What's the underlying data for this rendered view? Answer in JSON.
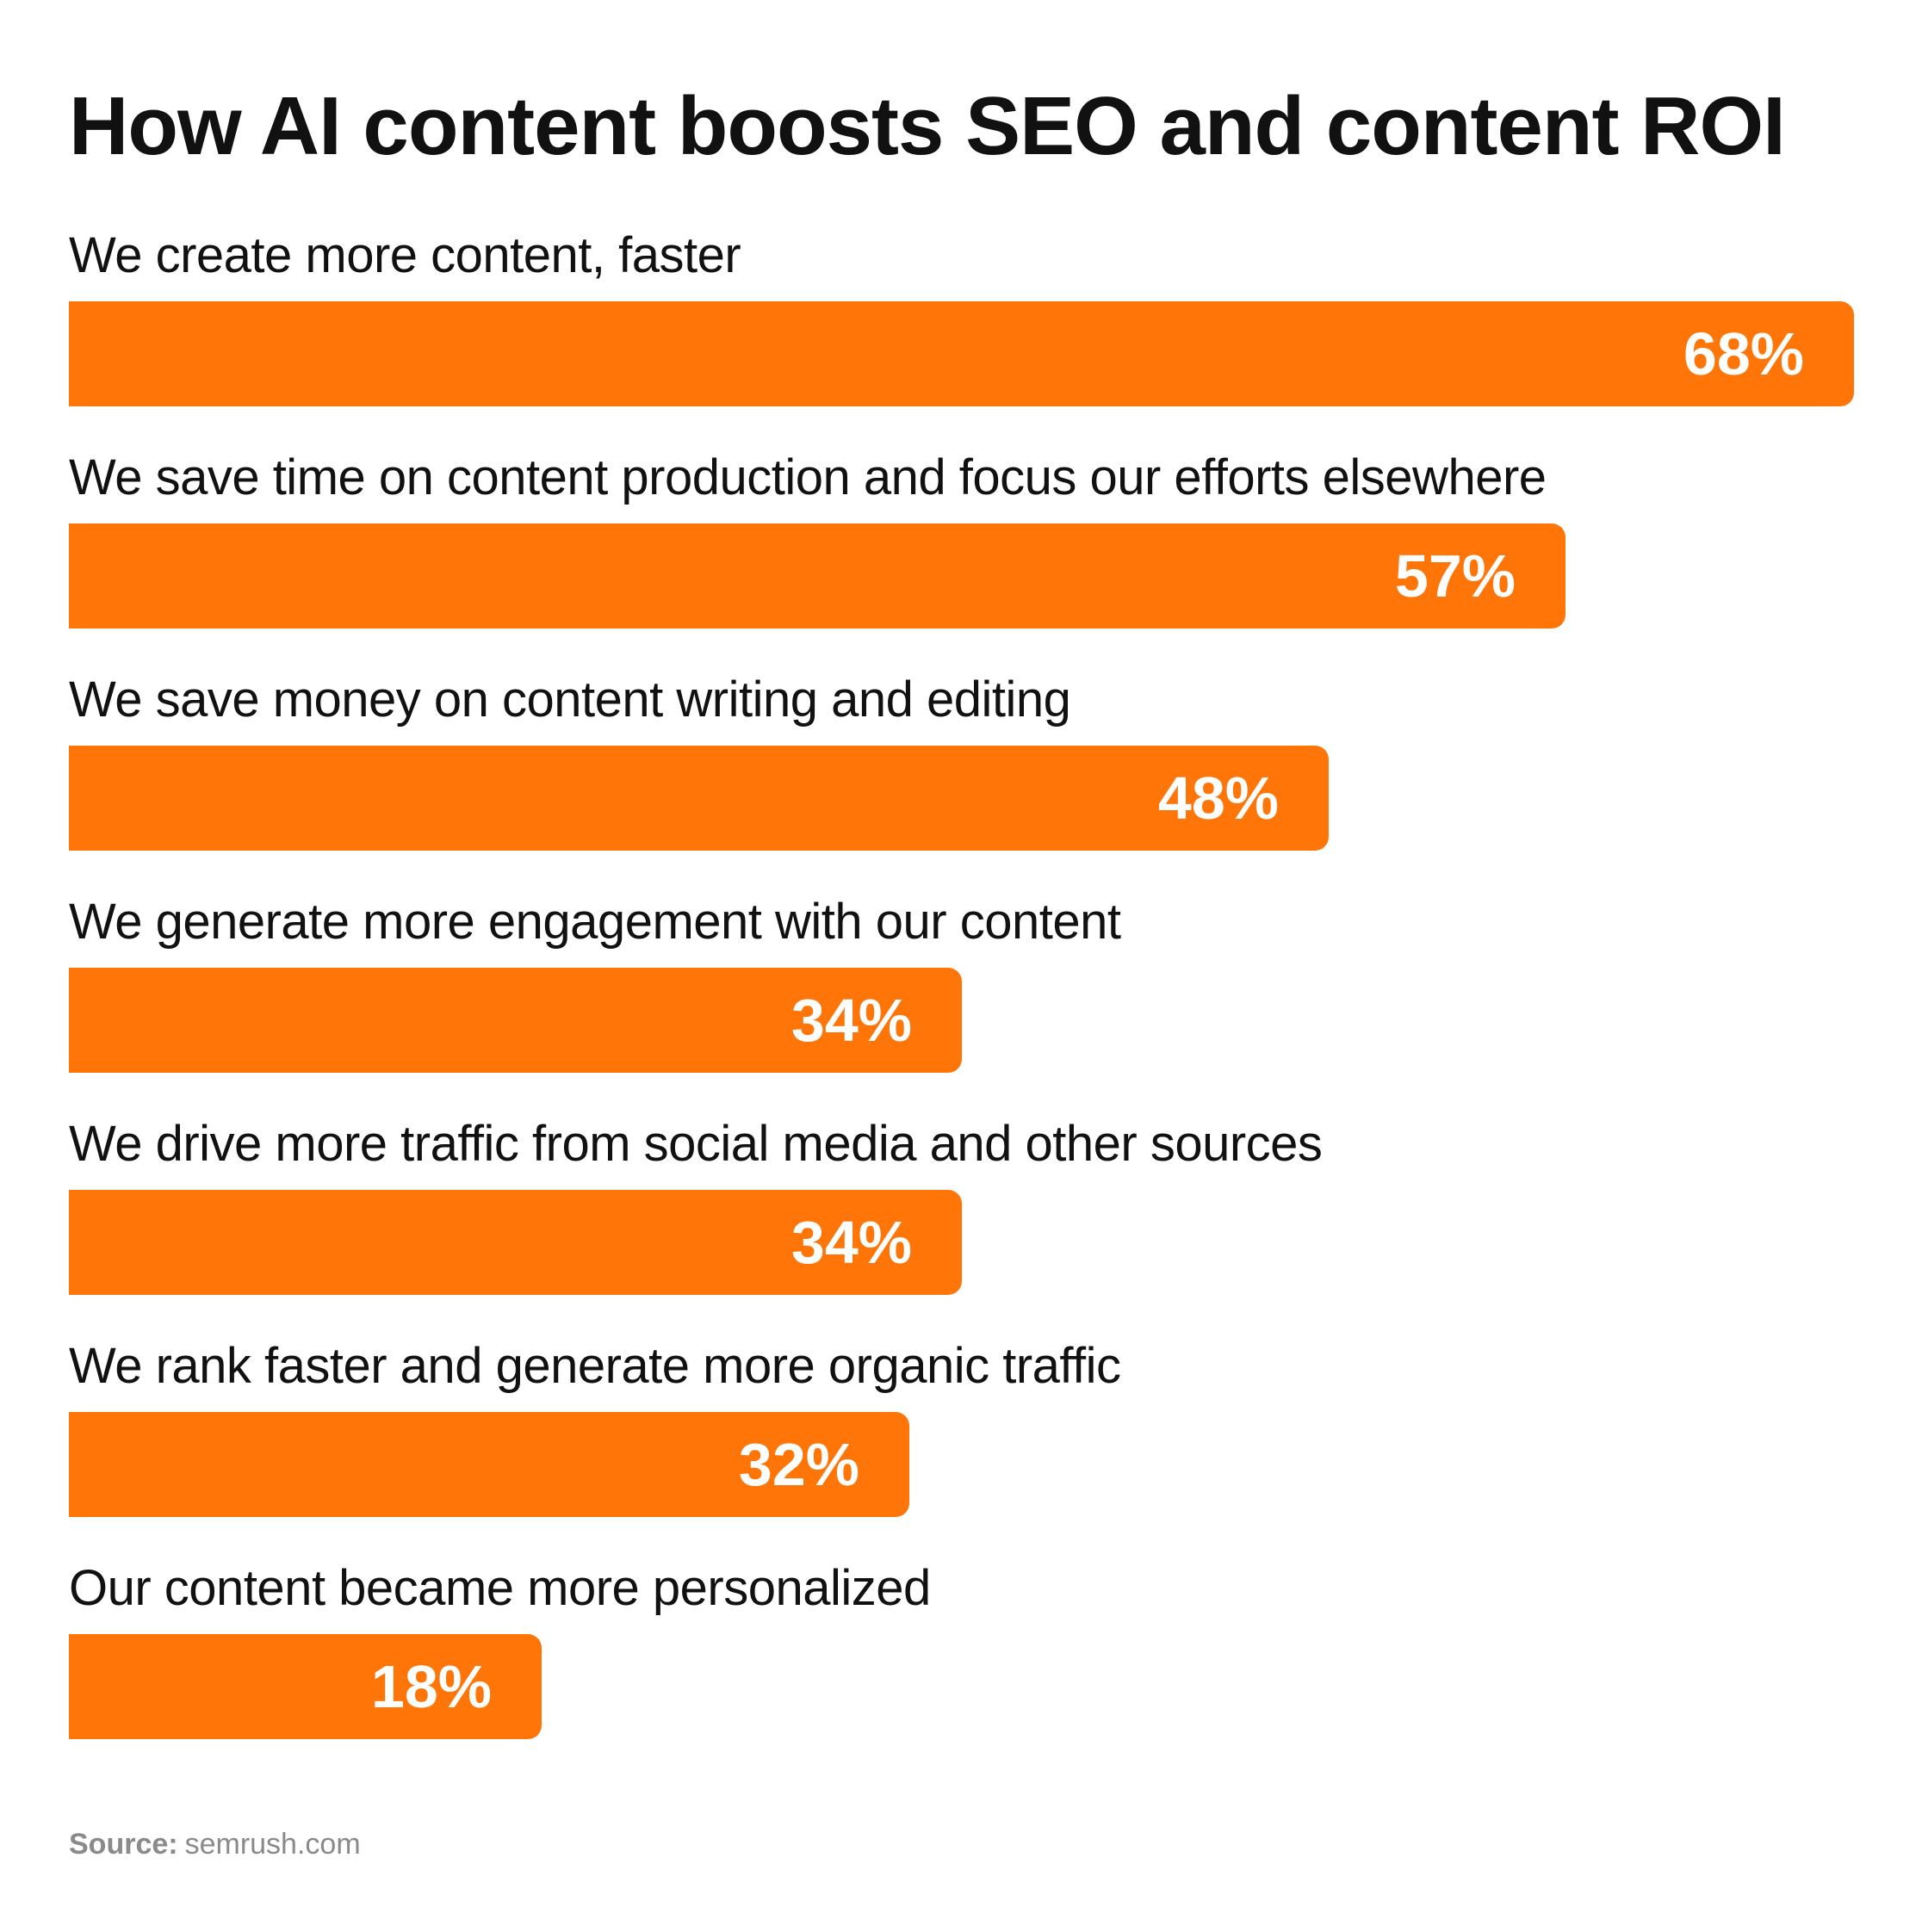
{
  "chart_data": {
    "type": "bar",
    "orientation": "horizontal",
    "title": "How AI content boosts SEO and content ROI",
    "categories": [
      "We create more content, faster",
      "We save time on content production and focus our efforts elsewhere",
      "We save money on content writing and editing",
      "We generate more engagement with our content",
      "We drive more traffic from social media and other sources",
      "We rank faster and generate more organic traffic",
      "Our content became more personalized"
    ],
    "values": [
      68,
      57,
      48,
      34,
      34,
      32,
      18
    ],
    "value_labels": [
      "68%",
      "57%",
      "48%",
      "34%",
      "34%",
      "32%",
      "18%"
    ],
    "unit": "%",
    "xlim": [
      0,
      68
    ],
    "grid": false,
    "legend": "none",
    "bar_color": "#FF7508"
  },
  "source": {
    "key": "Source:",
    "value": "semrush.com"
  }
}
